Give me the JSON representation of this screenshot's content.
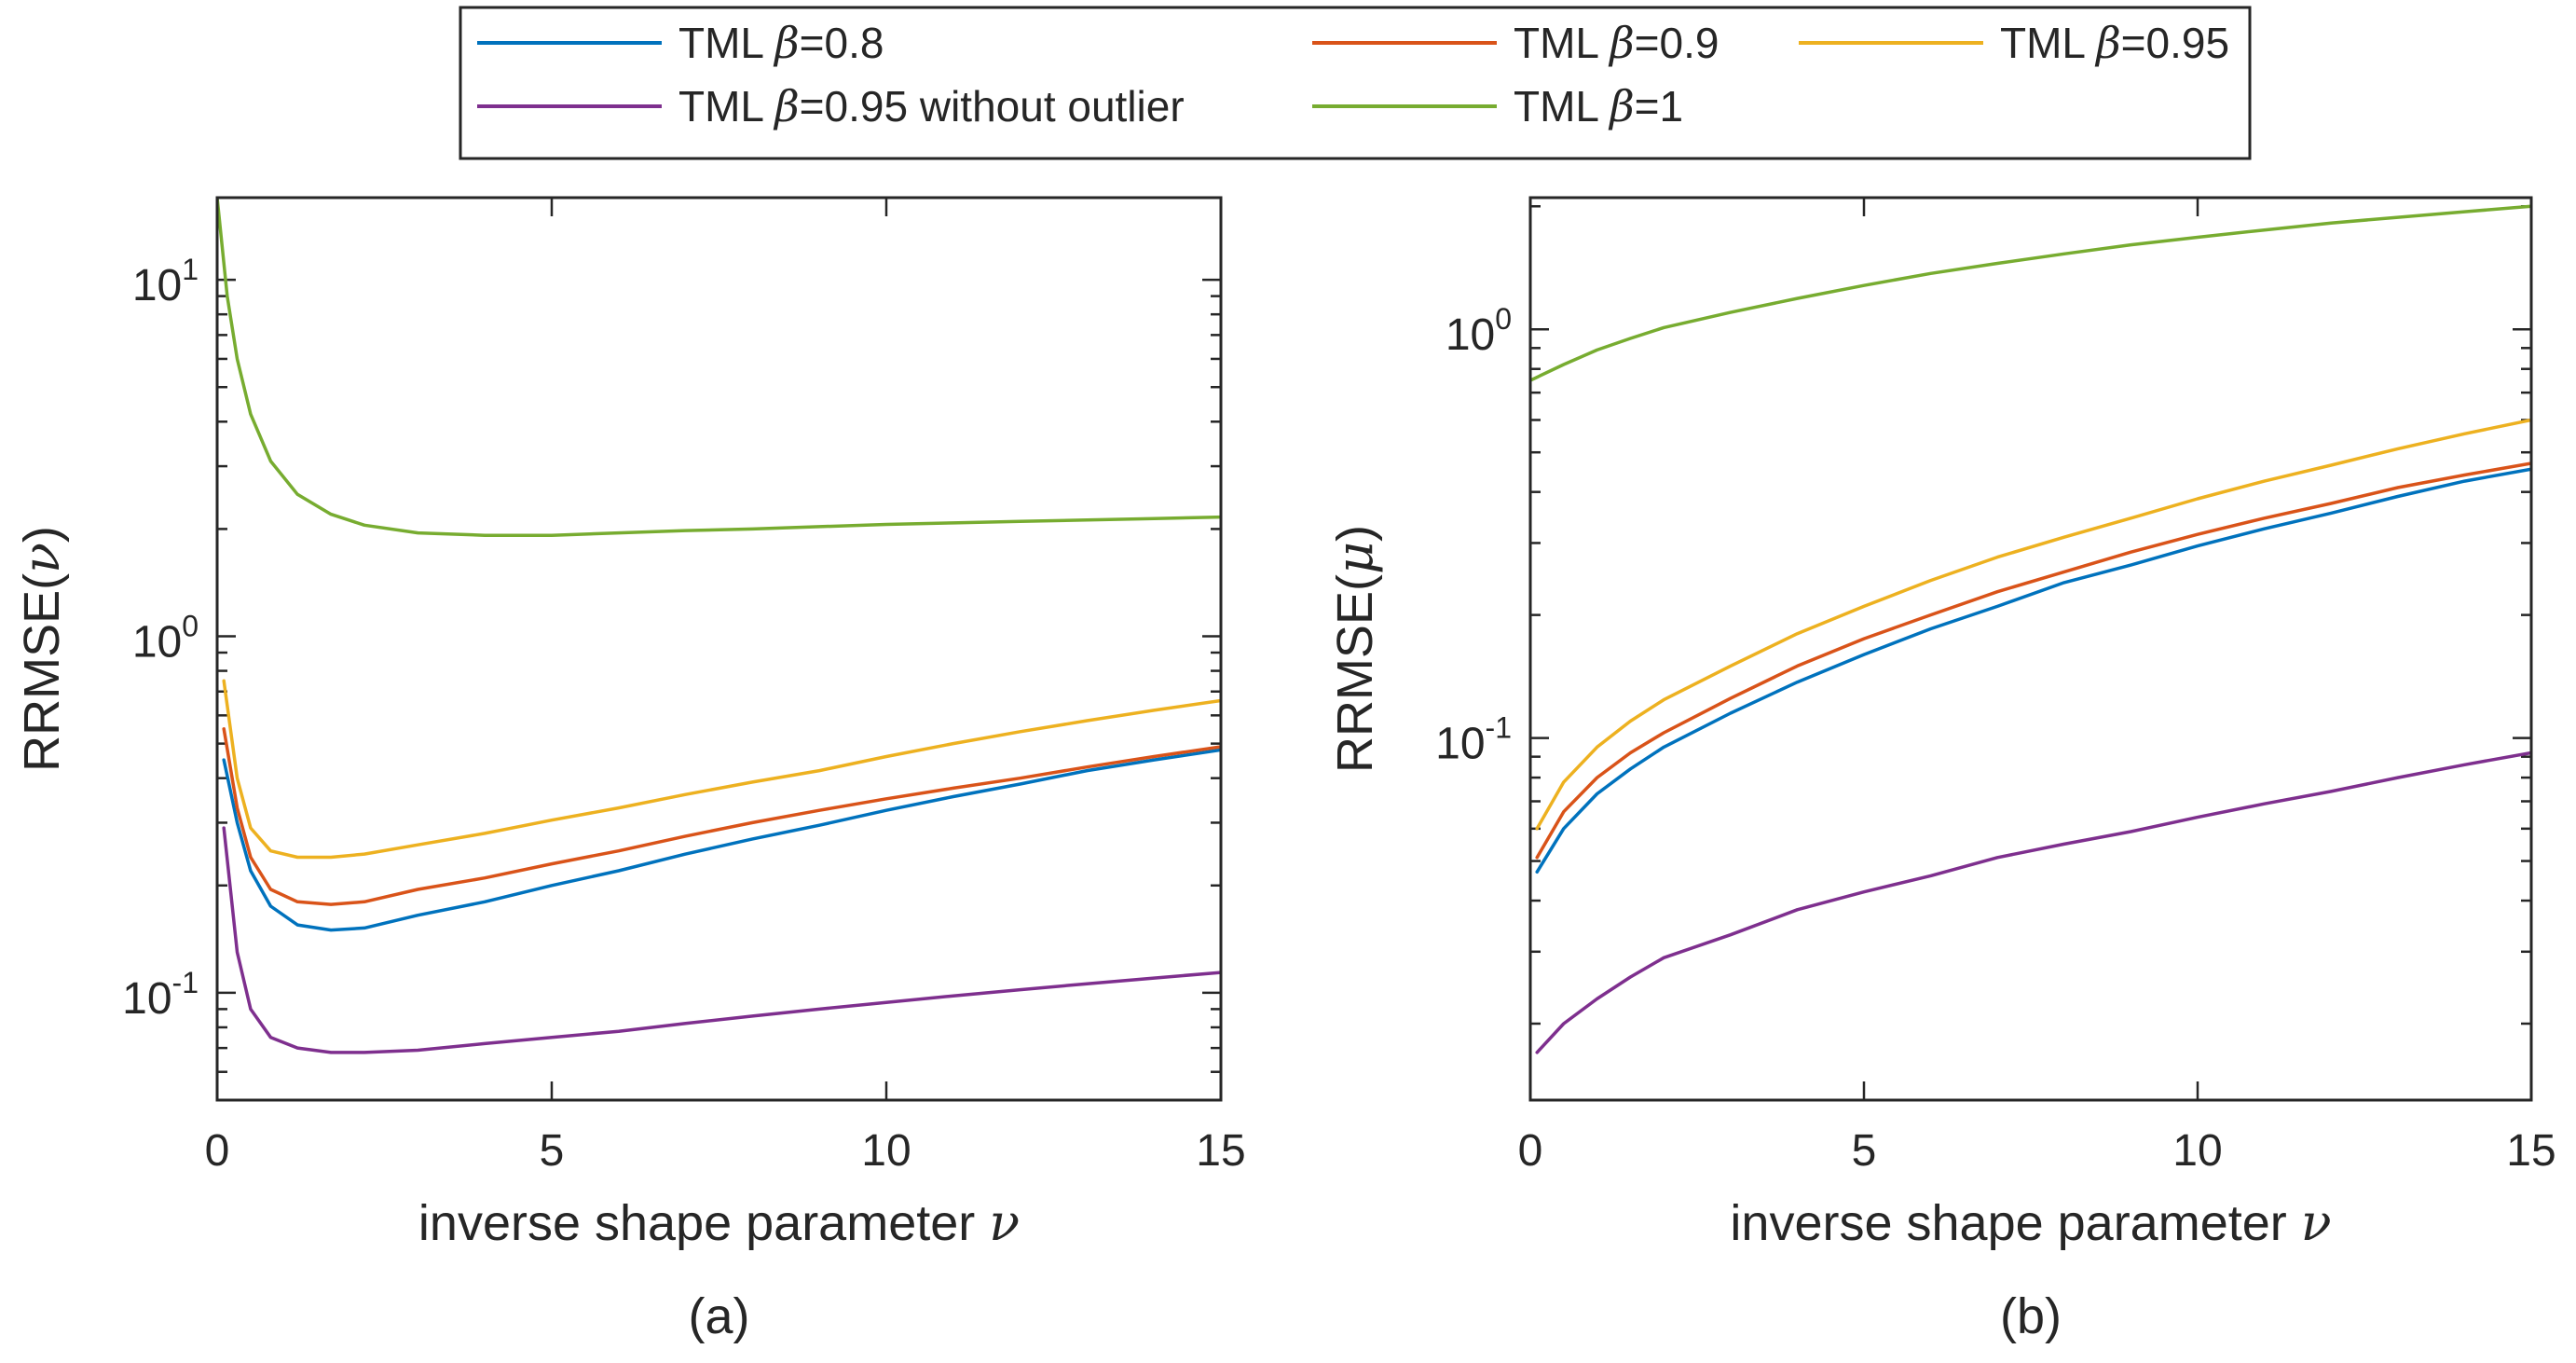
{
  "legend": {
    "entries": [
      {
        "prefix": "TML ",
        "symbol": "β",
        "suffix": "=0.8",
        "color": "#0072BD"
      },
      {
        "prefix": "TML ",
        "symbol": "β",
        "suffix": "=0.9",
        "color": "#D95319"
      },
      {
        "prefix": "TML ",
        "symbol": "β",
        "suffix": "=0.95",
        "color": "#EDB120"
      },
      {
        "prefix": "TML ",
        "symbol": "β",
        "suffix": "=0.95 without outlier",
        "color": "#7E2F8E"
      },
      {
        "prefix": "TML ",
        "symbol": "β",
        "suffix": "=1",
        "color": "#77AC30"
      }
    ]
  },
  "chart_data": [
    {
      "type": "line",
      "panel_label": "(a)",
      "xlabel": "inverse shape parameter ν",
      "ylabel": "RRMSE(ν)",
      "xlim": [
        0,
        15
      ],
      "ylim": [
        0.05,
        17
      ],
      "yscale": "log",
      "xticks": [
        0,
        5,
        10,
        15
      ],
      "yticks": [
        {
          "base": "10",
          "exp": "-1",
          "value": 0.1
        },
        {
          "base": "10",
          "exp": "0",
          "value": 1
        },
        {
          "base": "10",
          "exp": "1",
          "value": 10
        }
      ],
      "series": [
        {
          "name": "TML β=0.8",
          "color": "#0072BD",
          "x": [
            0.1,
            0.3,
            0.5,
            0.8,
            1.2,
            1.7,
            2.2,
            3,
            4,
            5,
            6,
            7,
            8,
            9,
            10,
            11,
            12,
            13,
            14,
            15
          ],
          "y": [
            0.45,
            0.3,
            0.22,
            0.175,
            0.155,
            0.15,
            0.152,
            0.165,
            0.18,
            0.2,
            0.22,
            0.245,
            0.27,
            0.295,
            0.325,
            0.355,
            0.385,
            0.42,
            0.45,
            0.48
          ]
        },
        {
          "name": "TML β=0.9",
          "color": "#D95319",
          "x": [
            0.1,
            0.3,
            0.5,
            0.8,
            1.2,
            1.7,
            2.2,
            3,
            4,
            5,
            6,
            7,
            8,
            9,
            10,
            11,
            12,
            13,
            14,
            15
          ],
          "y": [
            0.55,
            0.33,
            0.24,
            0.195,
            0.18,
            0.177,
            0.18,
            0.195,
            0.21,
            0.23,
            0.25,
            0.275,
            0.3,
            0.325,
            0.35,
            0.375,
            0.4,
            0.43,
            0.46,
            0.49
          ]
        },
        {
          "name": "TML β=0.95",
          "color": "#EDB120",
          "x": [
            0.1,
            0.3,
            0.5,
            0.8,
            1.2,
            1.7,
            2.2,
            3,
            4,
            5,
            6,
            7,
            8,
            9,
            10,
            11,
            12,
            13,
            14,
            15
          ],
          "y": [
            0.75,
            0.4,
            0.29,
            0.25,
            0.24,
            0.24,
            0.245,
            0.26,
            0.28,
            0.305,
            0.33,
            0.36,
            0.39,
            0.42,
            0.46,
            0.5,
            0.54,
            0.58,
            0.62,
            0.66
          ]
        },
        {
          "name": "TML β=0.95 without outlier",
          "color": "#7E2F8E",
          "x": [
            0.1,
            0.3,
            0.5,
            0.8,
            1.2,
            1.7,
            2.2,
            3,
            4,
            5,
            6,
            7,
            8,
            9,
            10,
            11,
            12,
            13,
            14,
            15
          ],
          "y": [
            0.29,
            0.13,
            0.09,
            0.075,
            0.07,
            0.068,
            0.068,
            0.069,
            0.072,
            0.075,
            0.078,
            0.082,
            0.086,
            0.09,
            0.094,
            0.098,
            0.102,
            0.106,
            0.11,
            0.114
          ]
        },
        {
          "name": "TML β=1",
          "color": "#77AC30",
          "x": [
            0,
            0.15,
            0.3,
            0.5,
            0.8,
            1.2,
            1.7,
            2.2,
            3,
            4,
            5,
            6,
            7,
            8,
            9,
            10,
            11,
            12,
            13,
            14,
            15
          ],
          "y": [
            17,
            9,
            6,
            4.2,
            3.1,
            2.5,
            2.2,
            2.05,
            1.95,
            1.92,
            1.92,
            1.95,
            1.98,
            2.0,
            2.03,
            2.06,
            2.08,
            2.1,
            2.12,
            2.14,
            2.16
          ]
        }
      ]
    },
    {
      "type": "line",
      "panel_label": "(b)",
      "xlabel": "inverse shape parameter ν",
      "ylabel": "RRMSE(μ)",
      "xlim": [
        0,
        15
      ],
      "ylim": [
        0.013,
        2.1
      ],
      "yscale": "log",
      "xticks": [
        0,
        5,
        10,
        15
      ],
      "yticks": [
        {
          "base": "10",
          "exp": "-1",
          "value": 0.1
        },
        {
          "base": "10",
          "exp": "0",
          "value": 1
        }
      ],
      "series": [
        {
          "name": "TML β=0.8",
          "color": "#0072BD",
          "x": [
            0.1,
            0.5,
            1,
            1.5,
            2,
            3,
            4,
            5,
            6,
            7,
            8,
            9,
            10,
            11,
            12,
            13,
            14,
            15
          ],
          "y": [
            0.047,
            0.06,
            0.073,
            0.084,
            0.095,
            0.115,
            0.137,
            0.16,
            0.185,
            0.21,
            0.24,
            0.265,
            0.295,
            0.325,
            0.355,
            0.39,
            0.425,
            0.455
          ]
        },
        {
          "name": "TML β=0.9",
          "color": "#D95319",
          "x": [
            0.1,
            0.5,
            1,
            1.5,
            2,
            3,
            4,
            5,
            6,
            7,
            8,
            9,
            10,
            11,
            12,
            13,
            14,
            15
          ],
          "y": [
            0.051,
            0.066,
            0.08,
            0.092,
            0.103,
            0.125,
            0.15,
            0.175,
            0.2,
            0.228,
            0.255,
            0.285,
            0.315,
            0.345,
            0.375,
            0.41,
            0.44,
            0.47
          ]
        },
        {
          "name": "TML β=0.95",
          "color": "#EDB120",
          "x": [
            0.1,
            0.5,
            1,
            1.5,
            2,
            3,
            4,
            5,
            6,
            7,
            8,
            9,
            10,
            11,
            12,
            13,
            14,
            15
          ],
          "y": [
            0.06,
            0.078,
            0.095,
            0.11,
            0.124,
            0.15,
            0.18,
            0.21,
            0.243,
            0.277,
            0.31,
            0.345,
            0.385,
            0.425,
            0.465,
            0.51,
            0.555,
            0.6
          ]
        },
        {
          "name": "TML β=0.95 without outlier",
          "color": "#7E2F8E",
          "x": [
            0.1,
            0.5,
            1,
            1.5,
            2,
            3,
            4,
            5,
            6,
            7,
            8,
            9,
            10,
            11,
            12,
            13,
            14,
            15
          ],
          "y": [
            0.017,
            0.02,
            0.023,
            0.026,
            0.029,
            0.033,
            0.038,
            0.042,
            0.046,
            0.051,
            0.055,
            0.059,
            0.064,
            0.069,
            0.074,
            0.08,
            0.086,
            0.092
          ]
        },
        {
          "name": "TML β=1",
          "color": "#77AC30",
          "x": [
            0,
            0.5,
            1,
            1.5,
            2,
            3,
            4,
            5,
            6,
            7,
            8,
            9,
            10,
            11,
            12,
            13,
            14,
            15
          ],
          "y": [
            0.75,
            0.82,
            0.89,
            0.95,
            1.01,
            1.1,
            1.19,
            1.28,
            1.37,
            1.45,
            1.53,
            1.61,
            1.68,
            1.75,
            1.82,
            1.88,
            1.94,
            2.0
          ]
        }
      ]
    }
  ]
}
